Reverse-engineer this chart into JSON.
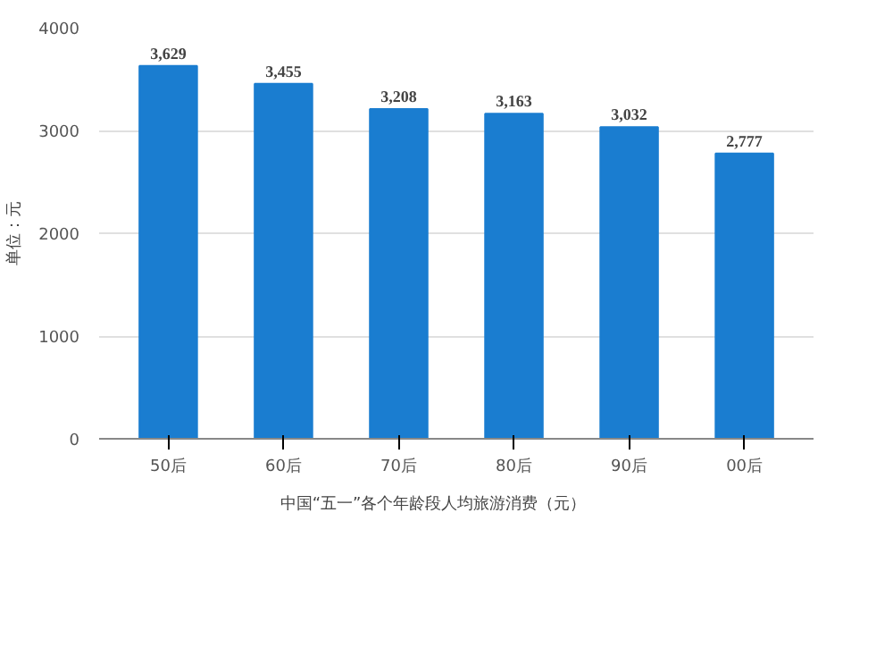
{
  "chart_data": {
    "type": "bar",
    "ylabel": "单位：元",
    "categories": [
      "50后",
      "60后",
      "70后",
      "80后",
      "90后",
      "00后"
    ],
    "series": [
      {
        "name": "中国“五一”各个年龄段人均旅游消费（元）",
        "color": "#1a7dd0",
        "values": [
          3629,
          3455,
          3208,
          3163,
          3032,
          2777
        ],
        "value_labels": [
          "3,629",
          "3,455",
          "3,208",
          "3,163",
          "3,032",
          "2,777"
        ]
      }
    ],
    "ylim": [
      0,
      4000
    ],
    "yticks": [
      0,
      1000,
      2000,
      3000,
      4000
    ],
    "grid": "y",
    "legend": "bottom"
  }
}
